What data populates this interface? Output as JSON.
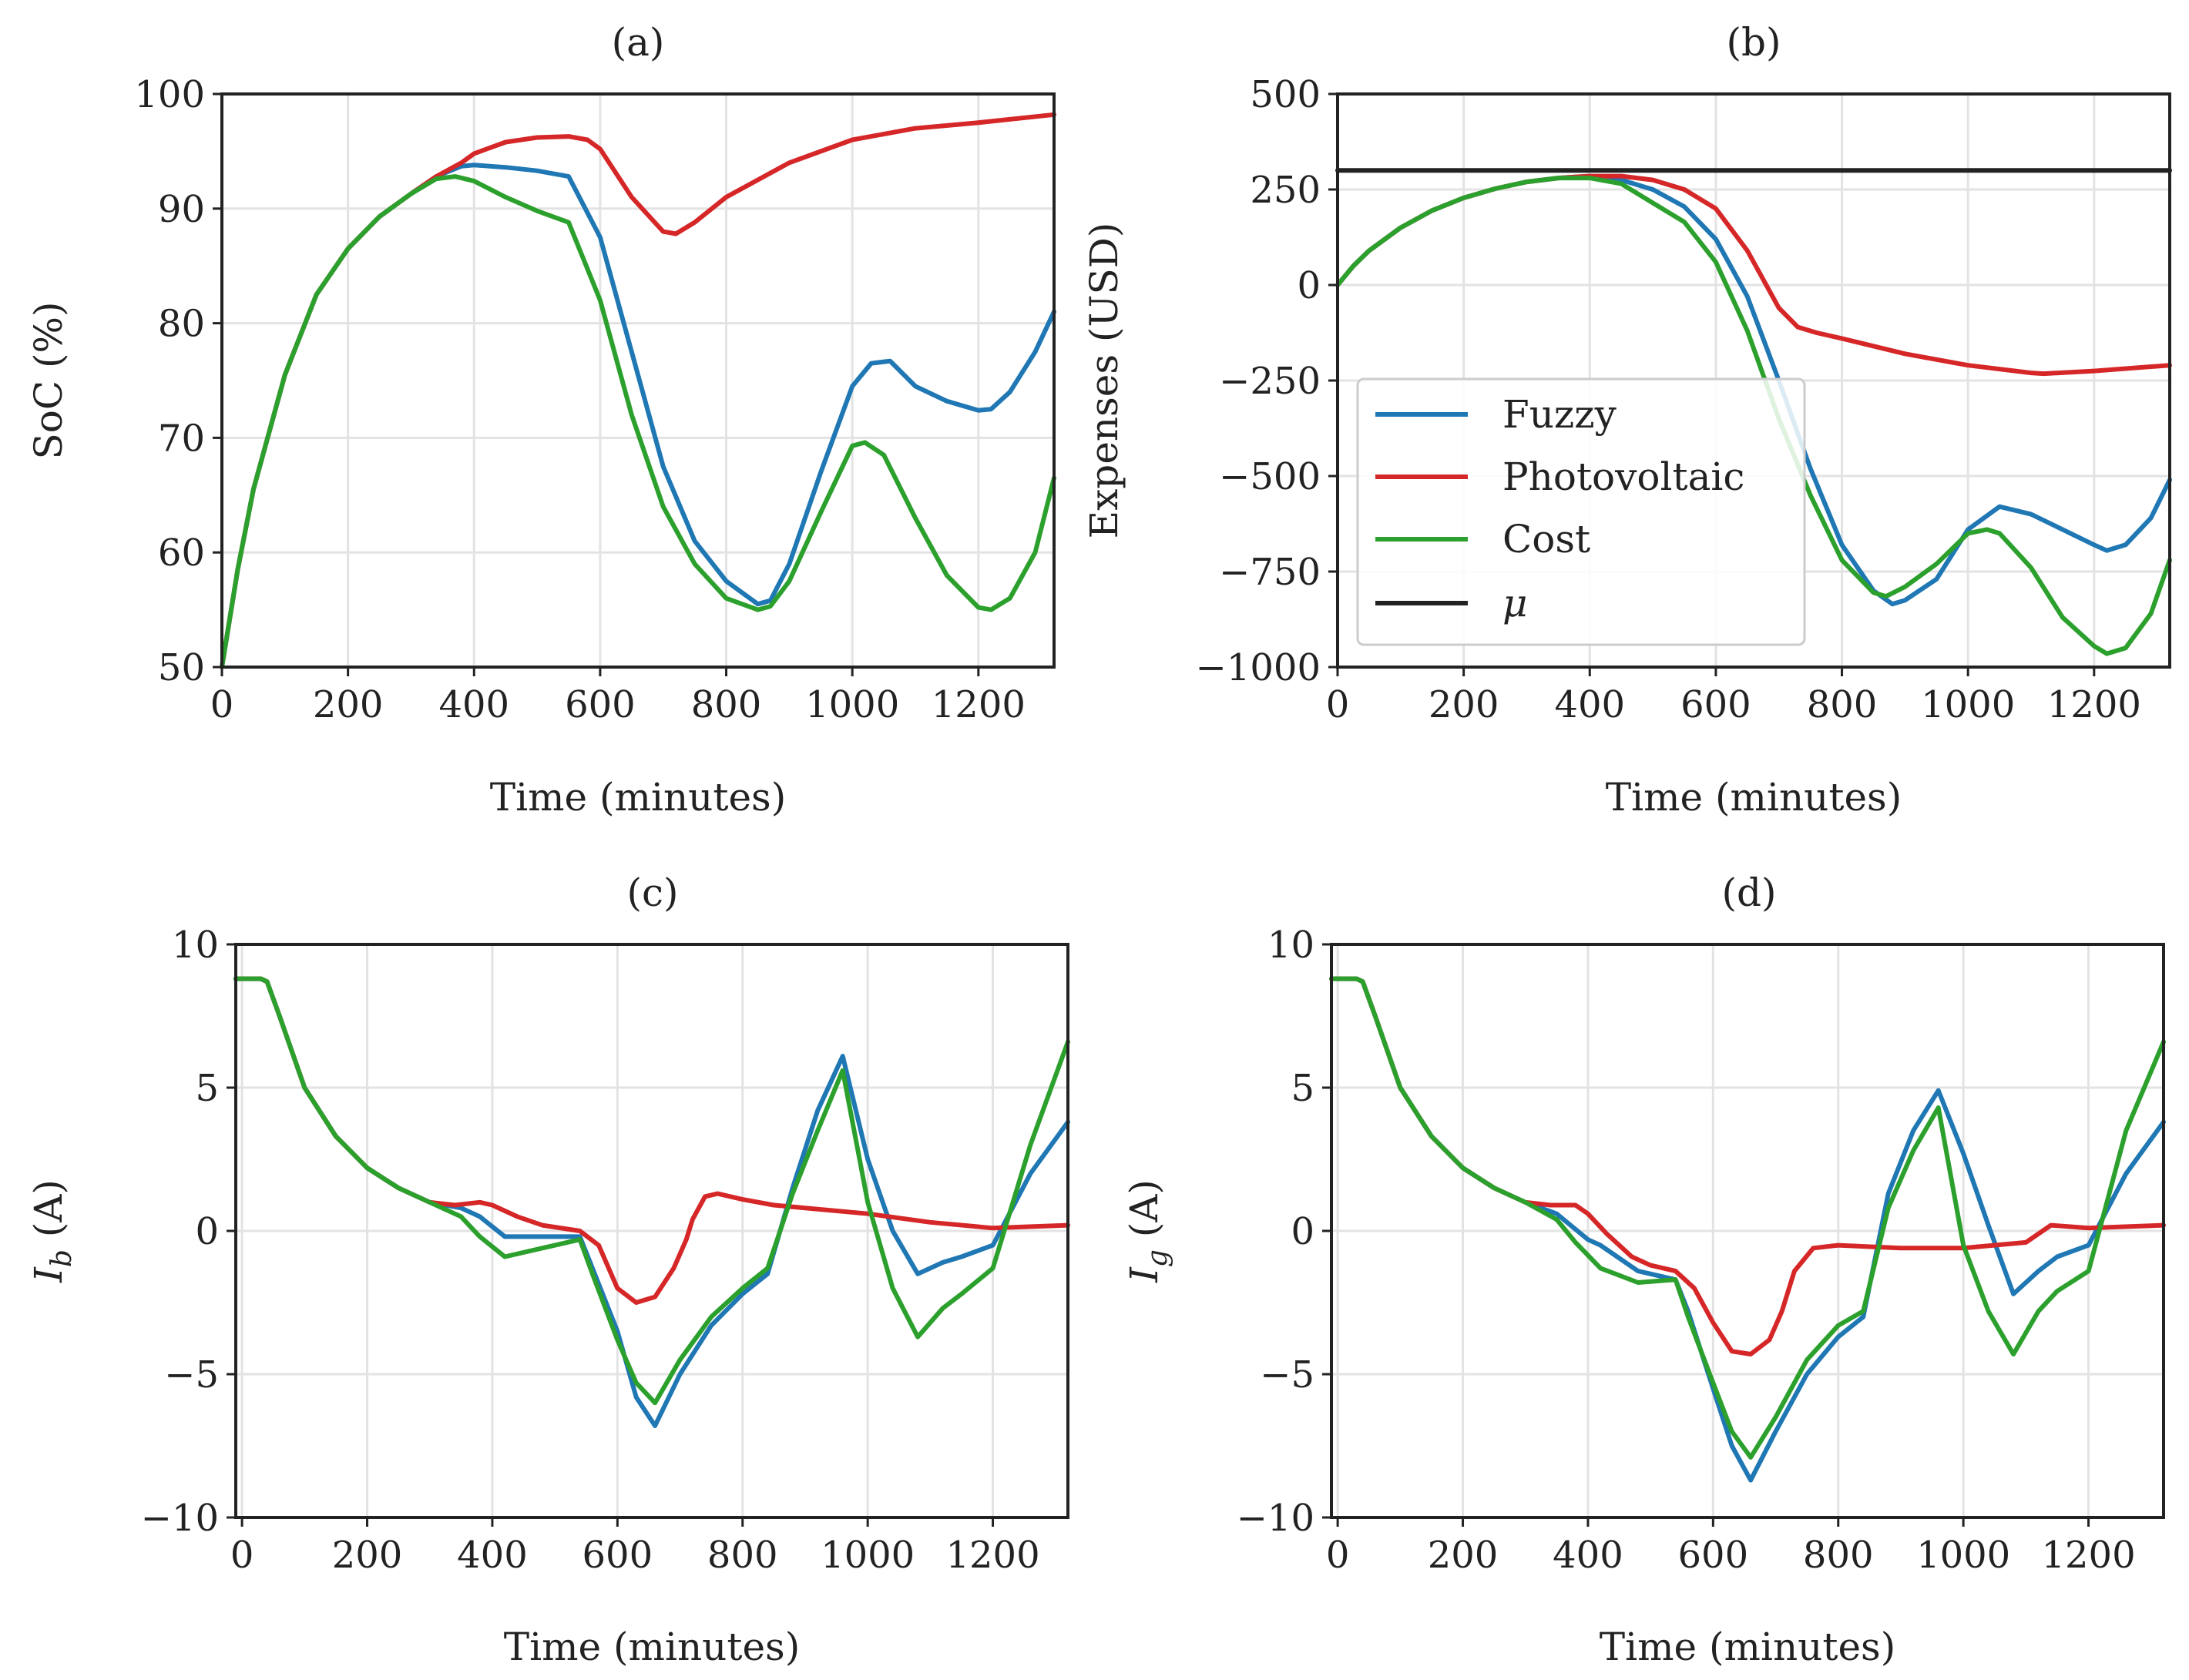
{
  "colors": {
    "Fuzzy": "#1f77b4",
    "Photovoltaic": "#d62728",
    "Cost": "#2ca02c",
    "mu": "#222222"
  },
  "legend": {
    "fuzzy": "Fuzzy",
    "photovoltaic": "Photovoltaic",
    "cost": "Cost",
    "mu": "μ"
  },
  "chart_data": [
    {
      "id": "a",
      "type": "line",
      "title": "(a)",
      "xlabel": "Time (minutes)",
      "ylabel": "SoC (%)",
      "xlim": [
        0,
        1320
      ],
      "ylim": [
        50,
        100
      ],
      "xticks": [
        0,
        200,
        400,
        600,
        800,
        1000,
        1200
      ],
      "yticks": [
        50,
        60,
        70,
        80,
        90,
        100
      ],
      "ytick_labels": [
        "50",
        "60",
        "70",
        "80",
        "90",
        "100"
      ],
      "series": [
        {
          "name": "Fuzzy",
          "x": [
            0,
            25,
            50,
            100,
            150,
            200,
            250,
            300,
            340,
            380,
            400,
            450,
            500,
            550,
            600,
            650,
            700,
            750,
            800,
            850,
            870,
            900,
            950,
            1000,
            1030,
            1060,
            1100,
            1150,
            1200,
            1220,
            1250,
            1290,
            1320
          ],
          "y": [
            50,
            58.5,
            65.5,
            75.5,
            82.5,
            86.5,
            89.3,
            91.3,
            92.8,
            93.7,
            93.8,
            93.6,
            93.3,
            92.8,
            87.5,
            77.5,
            67.5,
            61,
            57.5,
            55.5,
            55.8,
            59,
            67,
            74.5,
            76.5,
            76.7,
            74.5,
            73.2,
            72.4,
            72.5,
            74,
            77.5,
            81
          ]
        },
        {
          "name": "Photovoltaic",
          "x": [
            0,
            25,
            50,
            100,
            150,
            200,
            250,
            300,
            340,
            380,
            400,
            450,
            500,
            550,
            580,
            600,
            650,
            700,
            720,
            750,
            800,
            900,
            1000,
            1100,
            1200,
            1320
          ],
          "y": [
            50,
            58.5,
            65.5,
            75.5,
            82.5,
            86.5,
            89.3,
            91.3,
            92.8,
            94,
            94.8,
            95.8,
            96.2,
            96.3,
            96,
            95.2,
            91,
            88,
            87.8,
            88.8,
            91,
            94,
            96,
            97,
            97.5,
            98.2
          ]
        },
        {
          "name": "Cost",
          "x": [
            0,
            25,
            50,
            100,
            150,
            200,
            250,
            300,
            340,
            370,
            400,
            450,
            500,
            550,
            600,
            650,
            700,
            750,
            800,
            850,
            870,
            900,
            950,
            1000,
            1020,
            1050,
            1100,
            1150,
            1200,
            1220,
            1250,
            1290,
            1320
          ],
          "y": [
            50,
            58.5,
            65.5,
            75.5,
            82.5,
            86.5,
            89.3,
            91.3,
            92.6,
            92.8,
            92.4,
            91,
            89.8,
            88.8,
            82,
            72,
            64,
            59,
            56,
            55,
            55.3,
            57.5,
            63.5,
            69.3,
            69.6,
            68.5,
            63,
            58,
            55.2,
            55,
            56,
            60,
            66.5
          ]
        }
      ]
    },
    {
      "id": "b",
      "type": "line",
      "title": "(b)",
      "xlabel": "Time (minutes)",
      "ylabel": "Expenses (USD)",
      "xlim": [
        0,
        1320
      ],
      "ylim": [
        -1000,
        500
      ],
      "xticks": [
        0,
        200,
        400,
        600,
        800,
        1000,
        1200
      ],
      "yticks": [
        -1000,
        -750,
        -500,
        -250,
        0,
        250,
        500
      ],
      "ytick_labels": [
        "−1000",
        "−750",
        "−500",
        "−250",
        "0",
        "250",
        "500"
      ],
      "series": [
        {
          "name": "Fuzzy",
          "x": [
            0,
            25,
            50,
            100,
            150,
            200,
            250,
            300,
            350,
            400,
            450,
            500,
            550,
            600,
            650,
            700,
            750,
            800,
            850,
            880,
            900,
            950,
            1000,
            1050,
            1100,
            1150,
            1200,
            1220,
            1250,
            1290,
            1320
          ],
          "y": [
            0,
            50,
            90,
            150,
            195,
            228,
            252,
            270,
            280,
            285,
            275,
            250,
            205,
            120,
            -30,
            -250,
            -480,
            -680,
            -800,
            -835,
            -825,
            -770,
            -640,
            -580,
            -600,
            -640,
            -680,
            -695,
            -680,
            -610,
            -510
          ]
        },
        {
          "name": "Photovoltaic",
          "x": [
            0,
            25,
            50,
            100,
            150,
            200,
            250,
            300,
            350,
            400,
            450,
            500,
            550,
            600,
            650,
            700,
            730,
            760,
            800,
            900,
            1000,
            1100,
            1120,
            1200,
            1320
          ],
          "y": [
            0,
            50,
            90,
            150,
            195,
            228,
            252,
            270,
            280,
            285,
            285,
            275,
            250,
            200,
            90,
            -60,
            -110,
            -125,
            -140,
            -180,
            -210,
            -230,
            -232,
            -225,
            -210
          ]
        },
        {
          "name": "Cost",
          "x": [
            0,
            25,
            50,
            100,
            150,
            200,
            250,
            300,
            350,
            400,
            450,
            500,
            550,
            600,
            650,
            700,
            750,
            800,
            850,
            870,
            900,
            950,
            1000,
            1030,
            1050,
            1100,
            1150,
            1200,
            1220,
            1250,
            1290,
            1320
          ],
          "y": [
            0,
            50,
            90,
            150,
            195,
            228,
            252,
            270,
            280,
            280,
            265,
            215,
            165,
            60,
            -120,
            -350,
            -550,
            -720,
            -805,
            -815,
            -790,
            -730,
            -650,
            -640,
            -650,
            -740,
            -870,
            -945,
            -965,
            -950,
            -860,
            -720
          ]
        },
        {
          "name": "μ",
          "x": [
            0,
            1320
          ],
          "y": [
            300,
            300
          ]
        }
      ]
    },
    {
      "id": "c",
      "type": "line",
      "title": "(c)",
      "xlabel": "Time (minutes)",
      "ylabel": "I_b (A)",
      "ylabel_main": "I",
      "ylabel_sub": "b",
      "ylabel_tail": " (A)",
      "xlim": [
        -10,
        1320
      ],
      "ylim": [
        -10,
        10
      ],
      "xticks": [
        0,
        200,
        400,
        600,
        800,
        1000,
        1200
      ],
      "yticks": [
        -10,
        -5,
        0,
        5,
        10
      ],
      "ytick_labels": [
        "−10",
        "−5",
        "0",
        "5",
        "10"
      ],
      "series": [
        {
          "name": "Fuzzy",
          "x": [
            -10,
            10,
            30,
            40,
            60,
            100,
            150,
            200,
            250,
            300,
            350,
            380,
            420,
            480,
            540,
            560,
            600,
            630,
            660,
            700,
            750,
            800,
            840,
            880,
            920,
            960,
            1000,
            1040,
            1080,
            1120,
            1150,
            1200,
            1260,
            1320
          ],
          "y": [
            8.8,
            8.8,
            8.8,
            8.7,
            7.5,
            5,
            3.3,
            2.2,
            1.5,
            1,
            0.8,
            0.5,
            -0.2,
            -0.2,
            -0.2,
            -1.3,
            -3.5,
            -5.8,
            -6.8,
            -5,
            -3.3,
            -2.2,
            -1.5,
            1.5,
            4.2,
            6.1,
            2.5,
            0,
            -1.5,
            -1.1,
            -0.9,
            -0.5,
            2,
            3.8
          ]
        },
        {
          "name": "Photovoltaic",
          "x": [
            -10,
            10,
            30,
            40,
            60,
            100,
            150,
            200,
            250,
            300,
            340,
            380,
            400,
            440,
            480,
            540,
            570,
            600,
            630,
            660,
            690,
            710,
            720,
            740,
            760,
            800,
            850,
            900,
            1000,
            1100,
            1200,
            1320
          ],
          "y": [
            8.8,
            8.8,
            8.8,
            8.7,
            7.5,
            5,
            3.3,
            2.2,
            1.5,
            1,
            0.9,
            1,
            0.9,
            0.5,
            0.2,
            0,
            -0.5,
            -2,
            -2.5,
            -2.3,
            -1.3,
            -0.3,
            0.4,
            1.2,
            1.3,
            1.1,
            0.9,
            0.8,
            0.6,
            0.3,
            0.1,
            0.2
          ]
        },
        {
          "name": "Cost",
          "x": [
            -10,
            10,
            30,
            40,
            60,
            100,
            150,
            200,
            250,
            300,
            350,
            380,
            420,
            480,
            540,
            560,
            600,
            630,
            660,
            700,
            750,
            800,
            840,
            880,
            920,
            960,
            1000,
            1040,
            1080,
            1120,
            1150,
            1200,
            1260,
            1320
          ],
          "y": [
            8.8,
            8.8,
            8.8,
            8.7,
            7.5,
            5,
            3.3,
            2.2,
            1.5,
            1,
            0.5,
            -0.2,
            -0.9,
            -0.6,
            -0.3,
            -1.5,
            -3.8,
            -5.3,
            -6,
            -4.5,
            -3,
            -2,
            -1.3,
            1.3,
            3.5,
            5.6,
            1,
            -2,
            -3.7,
            -2.7,
            -2.2,
            -1.3,
            3,
            6.6
          ]
        }
      ]
    },
    {
      "id": "d",
      "type": "line",
      "title": "(d)",
      "xlabel": "Time (minutes)",
      "ylabel": "I_g (A)",
      "ylabel_main": "I",
      "ylabel_sub": "g",
      "ylabel_tail": " (A)",
      "xlim": [
        -10,
        1320
      ],
      "ylim": [
        -10,
        10
      ],
      "xticks": [
        0,
        200,
        400,
        600,
        800,
        1000,
        1200
      ],
      "yticks": [
        -10,
        -5,
        0,
        5,
        10
      ],
      "ytick_labels": [
        "−10",
        "−5",
        "0",
        "5",
        "10"
      ],
      "series": [
        {
          "name": "Fuzzy",
          "x": [
            -10,
            10,
            30,
            40,
            60,
            100,
            150,
            200,
            250,
            300,
            350,
            400,
            420,
            480,
            540,
            560,
            600,
            630,
            660,
            700,
            750,
            800,
            840,
            880,
            920,
            960,
            1000,
            1040,
            1080,
            1120,
            1150,
            1200,
            1260,
            1320
          ],
          "y": [
            8.8,
            8.8,
            8.8,
            8.7,
            7.5,
            5,
            3.3,
            2.2,
            1.5,
            1,
            0.6,
            -0.3,
            -0.5,
            -1.4,
            -1.7,
            -2.8,
            -5.5,
            -7.5,
            -8.7,
            -7,
            -5,
            -3.7,
            -3,
            1.3,
            3.5,
            4.9,
            2.7,
            0.2,
            -2.2,
            -1.4,
            -0.9,
            -0.5,
            2,
            3.8
          ]
        },
        {
          "name": "Photovoltaic",
          "x": [
            -10,
            10,
            30,
            40,
            60,
            100,
            150,
            200,
            250,
            300,
            340,
            380,
            400,
            430,
            470,
            500,
            540,
            570,
            600,
            630,
            660,
            690,
            710,
            730,
            760,
            800,
            900,
            1000,
            1100,
            1140,
            1200,
            1320
          ],
          "y": [
            8.8,
            8.8,
            8.8,
            8.7,
            7.5,
            5,
            3.3,
            2.2,
            1.5,
            1,
            0.9,
            0.9,
            0.6,
            -0.1,
            -0.9,
            -1.2,
            -1.4,
            -2,
            -3.2,
            -4.2,
            -4.3,
            -3.8,
            -2.8,
            -1.4,
            -0.6,
            -0.5,
            -0.6,
            -0.6,
            -0.4,
            0.2,
            0.1,
            0.2
          ]
        },
        {
          "name": "Cost",
          "x": [
            -10,
            10,
            30,
            40,
            60,
            100,
            150,
            200,
            250,
            300,
            350,
            380,
            420,
            480,
            540,
            560,
            600,
            630,
            660,
            700,
            750,
            800,
            840,
            880,
            920,
            960,
            1000,
            1040,
            1080,
            1120,
            1150,
            1200,
            1260,
            1320
          ],
          "y": [
            8.8,
            8.8,
            8.8,
            8.7,
            7.5,
            5,
            3.3,
            2.2,
            1.5,
            1,
            0.4,
            -0.4,
            -1.3,
            -1.8,
            -1.7,
            -3,
            -5.3,
            -7,
            -7.9,
            -6.5,
            -4.5,
            -3.3,
            -2.8,
            0.8,
            2.8,
            4.3,
            -0.5,
            -2.8,
            -4.3,
            -2.8,
            -2.1,
            -1.4,
            3.5,
            6.6
          ]
        }
      ]
    }
  ]
}
